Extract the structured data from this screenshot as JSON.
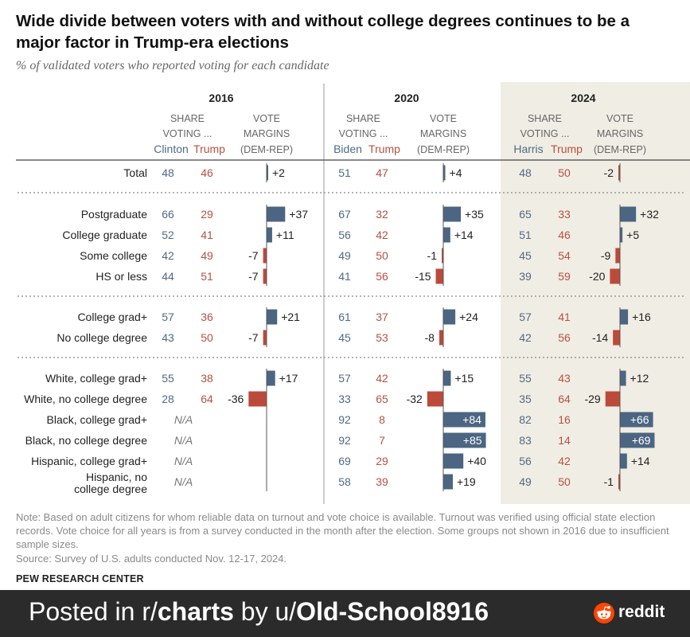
{
  "header": {
    "title": "Wide divide between voters with and without college degrees continues to be a major factor in Trump-era elections",
    "subtitle": "% of validated voters who reported voting for each candidate"
  },
  "chart_data": {
    "type": "table",
    "colors": {
      "dem": "#4f6a86",
      "rep": "#b8503f",
      "bar_dem": "#4b6582",
      "bar_rep": "#bb4a3b",
      "shade_2024": "#f0ede4"
    },
    "col_headers": {
      "share_line1": "SHARE",
      "share_line2": "VOTING ...",
      "vote_line1": "VOTE",
      "vote_line2": "MARGINS",
      "vote_line3": "(DEM-REP)"
    },
    "years": [
      {
        "year": "2016",
        "dem": "Clinton",
        "rep": "Trump"
      },
      {
        "year": "2020",
        "dem": "Biden",
        "rep": "Trump"
      },
      {
        "year": "2024",
        "dem": "Harris",
        "rep": "Trump"
      }
    ],
    "na_label": "N/A",
    "groups": [
      [
        {
          "label": "Total",
          "values": [
            [
              48,
              46,
              2
            ],
            [
              51,
              47,
              4
            ],
            [
              48,
              50,
              -2
            ]
          ]
        }
      ],
      [
        {
          "label": "Postgraduate",
          "values": [
            [
              66,
              29,
              37
            ],
            [
              67,
              32,
              35
            ],
            [
              65,
              33,
              32
            ]
          ]
        },
        {
          "label": "College graduate",
          "values": [
            [
              52,
              41,
              11
            ],
            [
              56,
              42,
              14
            ],
            [
              51,
              46,
              5
            ]
          ]
        },
        {
          "label": "Some college",
          "values": [
            [
              42,
              49,
              -7
            ],
            [
              49,
              50,
              -1
            ],
            [
              45,
              54,
              -9
            ]
          ]
        },
        {
          "label": "HS or less",
          "values": [
            [
              44,
              51,
              -7
            ],
            [
              41,
              56,
              -15
            ],
            [
              39,
              59,
              -20
            ]
          ]
        }
      ],
      [
        {
          "label": "College grad+",
          "values": [
            [
              57,
              36,
              21
            ],
            [
              61,
              37,
              24
            ],
            [
              57,
              41,
              16
            ]
          ]
        },
        {
          "label": "No college degree",
          "values": [
            [
              43,
              50,
              -7
            ],
            [
              45,
              53,
              -8
            ],
            [
              42,
              56,
              -14
            ]
          ]
        }
      ],
      [
        {
          "label": "White, college grad+",
          "values": [
            [
              55,
              38,
              17
            ],
            [
              57,
              42,
              15
            ],
            [
              55,
              43,
              12
            ]
          ]
        },
        {
          "label": "White, no college degree",
          "values": [
            [
              28,
              64,
              -36
            ],
            [
              33,
              65,
              -32
            ],
            [
              35,
              64,
              -29
            ]
          ]
        },
        {
          "label": "Black, college grad+",
          "values": [
            null,
            [
              92,
              8,
              84
            ],
            [
              82,
              16,
              66
            ]
          ]
        },
        {
          "label": "Black, no college degree",
          "values": [
            null,
            [
              92,
              7,
              85
            ],
            [
              83,
              14,
              69
            ]
          ]
        },
        {
          "label": "Hispanic, college grad+",
          "values": [
            null,
            [
              69,
              29,
              40
            ],
            [
              56,
              42,
              14
            ]
          ]
        },
        {
          "label": "Hispanic, no college degree",
          "label_lines": [
            "Hispanic, no",
            "college degree"
          ],
          "values": [
            null,
            [
              58,
              39,
              19
            ],
            [
              49,
              50,
              -1
            ]
          ]
        }
      ]
    ]
  },
  "footer": {
    "note": "Note: Based on adult citizens for whom reliable data on turnout and vote choice is available. Turnout was verified using official state election records. Vote choice for all years is from a survey conducted in the month after the election. Some groups not shown in 2016 due to insufficient sample sizes.",
    "source": "Source: Survey of U.S. adults conducted Nov. 12-17, 2024.",
    "brand": "PEW RESEARCH CENTER"
  },
  "banner": {
    "prefix": "Posted in r/",
    "subreddit": "charts",
    "middle": " by u/",
    "user": "Old-School8916",
    "logo_text": "reddit"
  }
}
